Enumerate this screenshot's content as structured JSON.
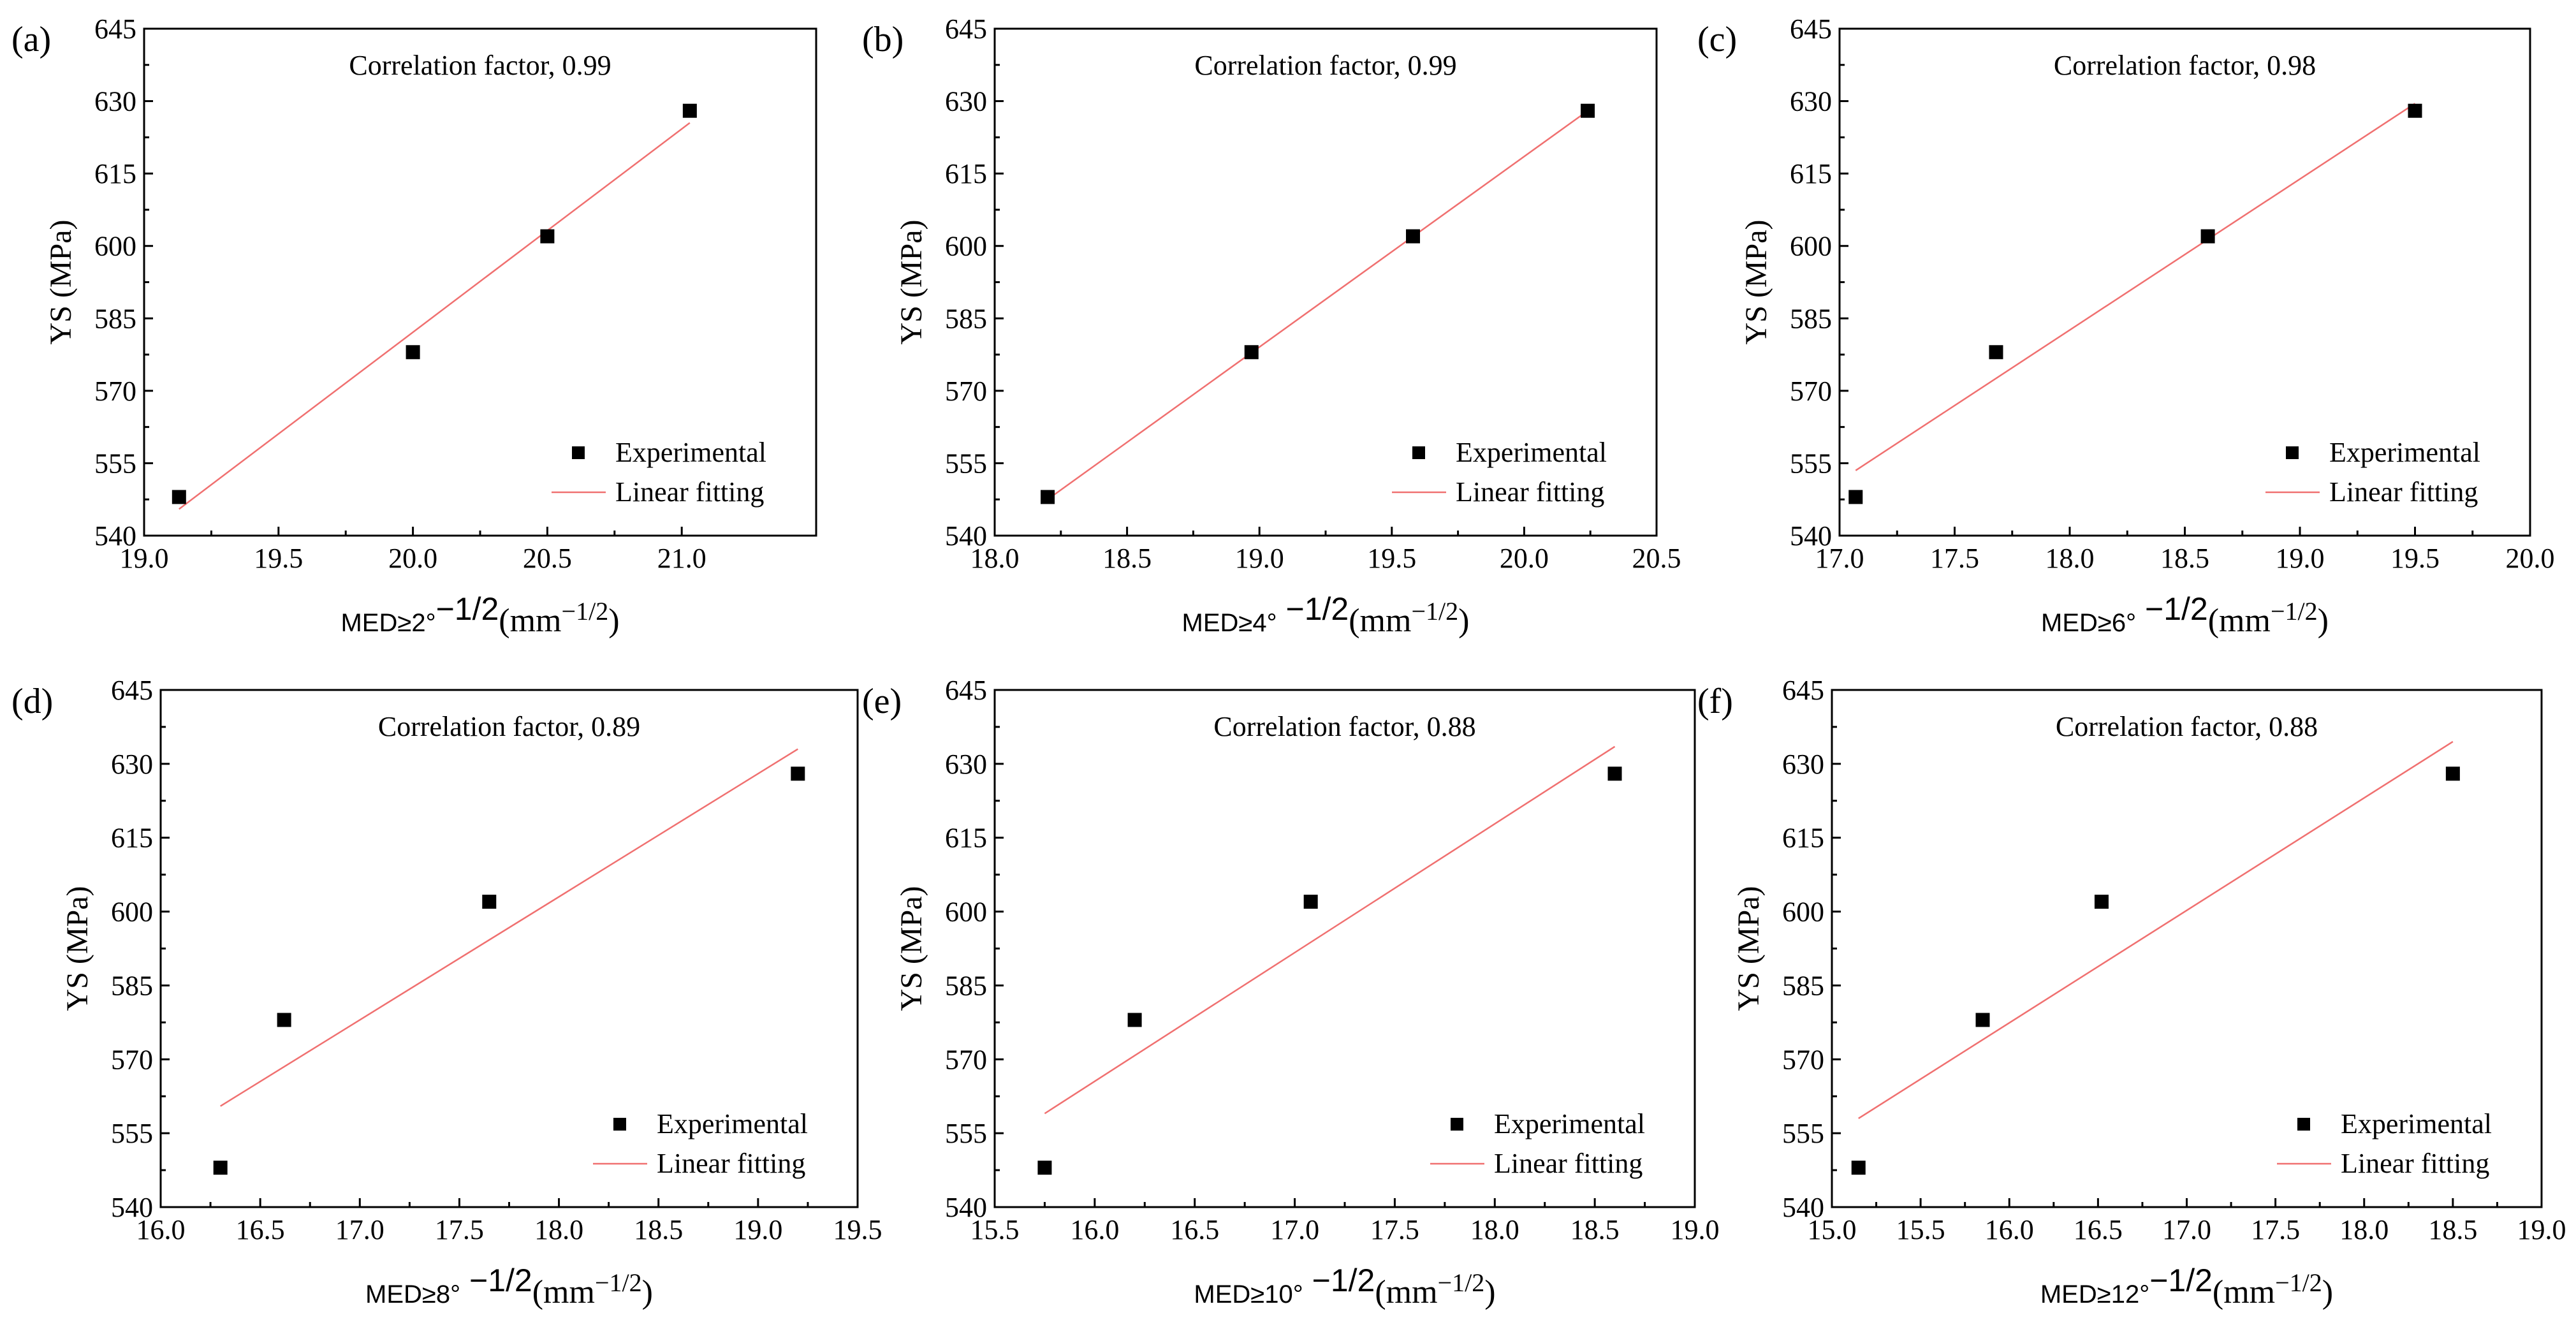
{
  "chart_data": [
    {
      "type": "scatter",
      "panel_label": "(a)",
      "annotation": "Correlation factor, 0.99",
      "xlabel_main": "MED≥2°",
      "xlabel_exp": "−1/2",
      "xlabel_unit": "(mm",
      "xlabel_unit_exp": "−1/2",
      "xlabel_close": ")",
      "ylabel": "YS (MPa)",
      "xlim": [
        19.0,
        21.5
      ],
      "ylim": [
        540,
        645
      ],
      "xticks": [
        "19.0",
        "19.5",
        "20.0",
        "20.5",
        "21.0"
      ],
      "yticks": [
        "540",
        "555",
        "570",
        "585",
        "600",
        "615",
        "630",
        "645"
      ],
      "legend": {
        "points": "Experimental",
        "line": "Linear fitting",
        "placement": "lower-right"
      },
      "series": [
        {
          "name": "Experimental",
          "x": [
            19.13,
            20.0,
            20.5,
            21.03
          ],
          "y": [
            548,
            578,
            602,
            628
          ]
        },
        {
          "name": "Linear fitting",
          "x": [
            19.13,
            21.03
          ],
          "y": [
            545.5,
            625.5
          ]
        }
      ]
    },
    {
      "type": "scatter",
      "panel_label": "(b)",
      "annotation": "Correlation factor, 0.99",
      "xlabel_main": "MED≥4°",
      "xlabel_exp": " −1/2",
      "xlabel_unit": "(mm",
      "xlabel_unit_exp": "−1/2",
      "xlabel_close": ")",
      "ylabel": "YS (MPa)",
      "xlim": [
        18.0,
        20.5
      ],
      "ylim": [
        540,
        645
      ],
      "xticks": [
        "18.0",
        "18.5",
        "19.0",
        "19.5",
        "20.0",
        "20.5"
      ],
      "yticks": [
        "540",
        "555",
        "570",
        "585",
        "600",
        "615",
        "630",
        "645"
      ],
      "legend": {
        "points": "Experimental",
        "line": "Linear fitting",
        "placement": "lower-right"
      },
      "series": [
        {
          "name": "Experimental",
          "x": [
            18.2,
            18.97,
            19.58,
            20.24
          ],
          "y": [
            548,
            578,
            602,
            628
          ]
        },
        {
          "name": "Linear fitting",
          "x": [
            18.2,
            20.24
          ],
          "y": [
            547.5,
            628
          ]
        }
      ]
    },
    {
      "type": "scatter",
      "panel_label": "(c)",
      "annotation": "Correlation factor, 0.98",
      "xlabel_main": "MED≥6°",
      "xlabel_exp": " −1/2",
      "xlabel_unit": "(mm",
      "xlabel_unit_exp": "−1/2",
      "xlabel_close": ")",
      "ylabel": "YS (MPa)",
      "xlim": [
        17.0,
        20.0
      ],
      "ylim": [
        540,
        645
      ],
      "xticks": [
        "17.0",
        "17.5",
        "18.0",
        "18.5",
        "19.0",
        "19.5",
        "20.0"
      ],
      "yticks": [
        "540",
        "555",
        "570",
        "585",
        "600",
        "615",
        "630",
        "645"
      ],
      "legend": {
        "points": "Experimental",
        "line": "Linear fitting",
        "placement": "lower-right"
      },
      "series": [
        {
          "name": "Experimental",
          "x": [
            17.07,
            17.68,
            18.6,
            19.5
          ],
          "y": [
            548,
            578,
            602,
            628
          ]
        },
        {
          "name": "Linear fitting",
          "x": [
            17.07,
            19.5
          ],
          "y": [
            553.5,
            629.5
          ]
        }
      ]
    },
    {
      "type": "scatter",
      "panel_label": "(d)",
      "annotation": "Correlation factor, 0.89",
      "xlabel_main": "MED≥8°",
      "xlabel_exp": " −1/2",
      "xlabel_unit": "(mm",
      "xlabel_unit_exp": "−1/2",
      "xlabel_close": ")",
      "ylabel": "YS (MPa)",
      "xlim": [
        16.0,
        19.5
      ],
      "ylim": [
        540,
        645
      ],
      "xticks": [
        "16.0",
        "16.5",
        "17.0",
        "17.5",
        "18.0",
        "18.5",
        "19.0",
        "19.5"
      ],
      "yticks": [
        "540",
        "555",
        "570",
        "585",
        "600",
        "615",
        "630",
        "645"
      ],
      "legend": {
        "points": "Experimental",
        "line": "Linear fitting",
        "placement": "lower-right"
      },
      "series": [
        {
          "name": "Experimental",
          "x": [
            16.3,
            16.62,
            17.65,
            19.2
          ],
          "y": [
            548,
            578,
            602,
            628
          ]
        },
        {
          "name": "Linear fitting",
          "x": [
            16.3,
            19.2
          ],
          "y": [
            560.5,
            633
          ]
        }
      ]
    },
    {
      "type": "scatter",
      "panel_label": "(e)",
      "annotation": "Correlation factor, 0.88",
      "xlabel_main": "MED≥10°",
      "xlabel_exp": " −1/2",
      "xlabel_unit": "(mm",
      "xlabel_unit_exp": "−1/2",
      "xlabel_close": ")",
      "ylabel": "YS (MPa)",
      "xlim": [
        15.5,
        19.0
      ],
      "ylim": [
        540,
        645
      ],
      "xticks": [
        "15.5",
        "16.0",
        "16.5",
        "17.0",
        "17.5",
        "18.0",
        "18.5",
        "19.0"
      ],
      "yticks": [
        "540",
        "555",
        "570",
        "585",
        "600",
        "615",
        "630",
        "645"
      ],
      "legend": {
        "points": "Experimental",
        "line": "Linear fitting",
        "placement": "lower-right"
      },
      "series": [
        {
          "name": "Experimental",
          "x": [
            15.75,
            16.2,
            17.08,
            18.6
          ],
          "y": [
            548,
            578,
            602,
            628
          ]
        },
        {
          "name": "Linear fitting",
          "x": [
            15.75,
            18.6
          ],
          "y": [
            559,
            633.5
          ]
        }
      ]
    },
    {
      "type": "scatter",
      "panel_label": "(f)",
      "annotation": "Correlation factor, 0.88",
      "xlabel_main": "MED≥12°",
      "xlabel_exp": "−1/2",
      "xlabel_unit": "(mm",
      "xlabel_unit_exp": "−1/2",
      "xlabel_close": ")",
      "ylabel": "YS (MPa)",
      "xlim": [
        15.0,
        19.0
      ],
      "ylim": [
        540,
        645
      ],
      "xticks": [
        "15.0",
        "15.5",
        "16.0",
        "16.5",
        "17.0",
        "17.5",
        "18.0",
        "18.5",
        "19.0"
      ],
      "yticks": [
        "540",
        "555",
        "570",
        "585",
        "600",
        "615",
        "630",
        "645"
      ],
      "legend": {
        "points": "Experimental",
        "line": "Linear fitting",
        "placement": "lower-right"
      },
      "series": [
        {
          "name": "Experimental",
          "x": [
            15.15,
            15.85,
            16.52,
            18.5
          ],
          "y": [
            548,
            578,
            602,
            628
          ]
        },
        {
          "name": "Linear fitting",
          "x": [
            15.15,
            18.5
          ],
          "y": [
            558,
            634.5
          ]
        }
      ]
    }
  ],
  "colors": {
    "points": "#000000",
    "fit_line": "#f07070",
    "axes": "#000000"
  }
}
